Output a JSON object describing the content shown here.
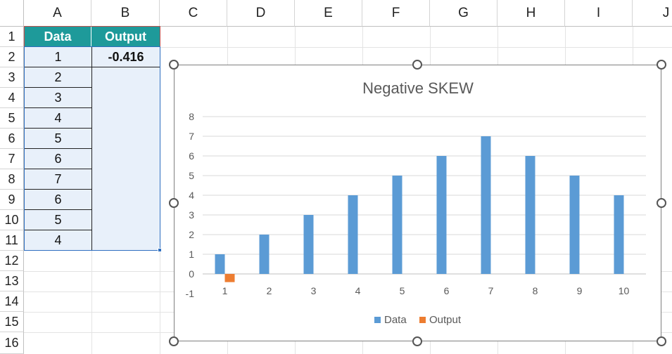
{
  "columns": [
    "A",
    "B",
    "C",
    "D",
    "E",
    "F",
    "G",
    "H",
    "I",
    "J"
  ],
  "rows": [
    "1",
    "2",
    "3",
    "4",
    "5",
    "6",
    "7",
    "8",
    "9",
    "10",
    "11",
    "12",
    "13",
    "14",
    "15",
    "16"
  ],
  "table": {
    "header_data": "Data",
    "header_output": "Output",
    "data_values": [
      "1",
      "2",
      "3",
      "4",
      "5",
      "6",
      "7",
      "6",
      "5",
      "4"
    ],
    "output_value": "-0.416"
  },
  "colors": {
    "header_fill": "#1e9a9a",
    "data_fill": "#e8f0fa",
    "series_data": "#5b9bd5",
    "series_output": "#ed7d31"
  },
  "chart_data": {
    "type": "bar",
    "title": "Negative SKEW",
    "categories": [
      "1",
      "2",
      "3",
      "4",
      "5",
      "6",
      "7",
      "8",
      "9",
      "10"
    ],
    "series": [
      {
        "name": "Data",
        "values": [
          1,
          2,
          3,
          4,
          5,
          6,
          7,
          6,
          5,
          4
        ]
      },
      {
        "name": "Output",
        "values": [
          -0.416,
          null,
          null,
          null,
          null,
          null,
          null,
          null,
          null,
          null
        ]
      }
    ],
    "ylim": [
      -1,
      8
    ],
    "yticks": [
      "-1",
      "0",
      "1",
      "2",
      "3",
      "4",
      "5",
      "6",
      "7",
      "8"
    ],
    "grid": true,
    "legend": "bottom",
    "legend_labels": [
      "Data",
      "Output"
    ]
  }
}
